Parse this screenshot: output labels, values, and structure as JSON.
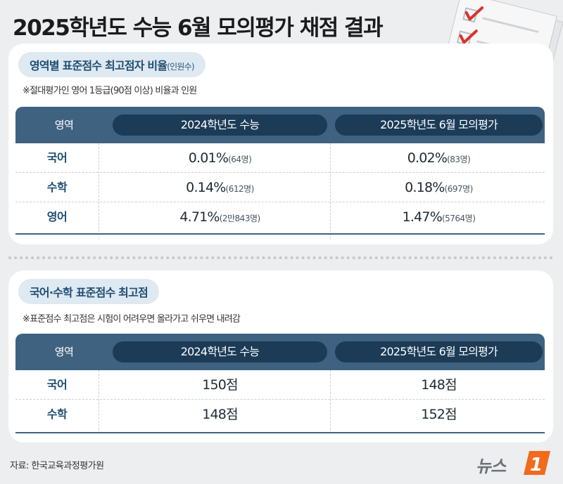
{
  "title": "2025학년도 수능 6월 모의평가 채점 결과",
  "section1": {
    "heading": "영역별 표준점수 최고점자 비율",
    "heading_sub": "(인원수)",
    "note": "※절대평가인 영어 1등급(90점 이상) 비율과 인원",
    "columns": [
      "영역",
      "2024학년도  수능",
      "2025학년도 6월 모의평가"
    ],
    "rows": [
      {
        "area": "국어",
        "v1": "0.01%",
        "c1": "(64명)",
        "v2": "0.02%",
        "c2": "(83명)"
      },
      {
        "area": "수학",
        "v1": "0.14%",
        "c1": "(612명)",
        "v2": "0.18%",
        "c2": "(697명)"
      },
      {
        "area": "영어",
        "v1": "4.71%",
        "c1": "(2만843명)",
        "v2": "1.47%",
        "c2": "(5764명)"
      }
    ]
  },
  "section2": {
    "heading": "국어·수학 표준점수 최고점",
    "note": "※표준점수 최고점은 시험이 어려우면 올라가고 쉬우면 내려감",
    "columns": [
      "영역",
      "2024학년도  수능",
      "2025학년도 6월 모의평가"
    ],
    "rows": [
      {
        "area": "국어",
        "v1": "150점",
        "v2": "148점"
      },
      {
        "area": "수학",
        "v1": "148점",
        "v2": "152점"
      }
    ]
  },
  "source": "자료: 한국교육과정평가원",
  "logo": {
    "text": "뉴스",
    "mark": "1"
  },
  "colors": {
    "header": "#3f6280",
    "header_pill": "#1b3b57",
    "accent": "#1f4e73",
    "check": "#d9342b",
    "logo_orange": "#f26a1b"
  }
}
